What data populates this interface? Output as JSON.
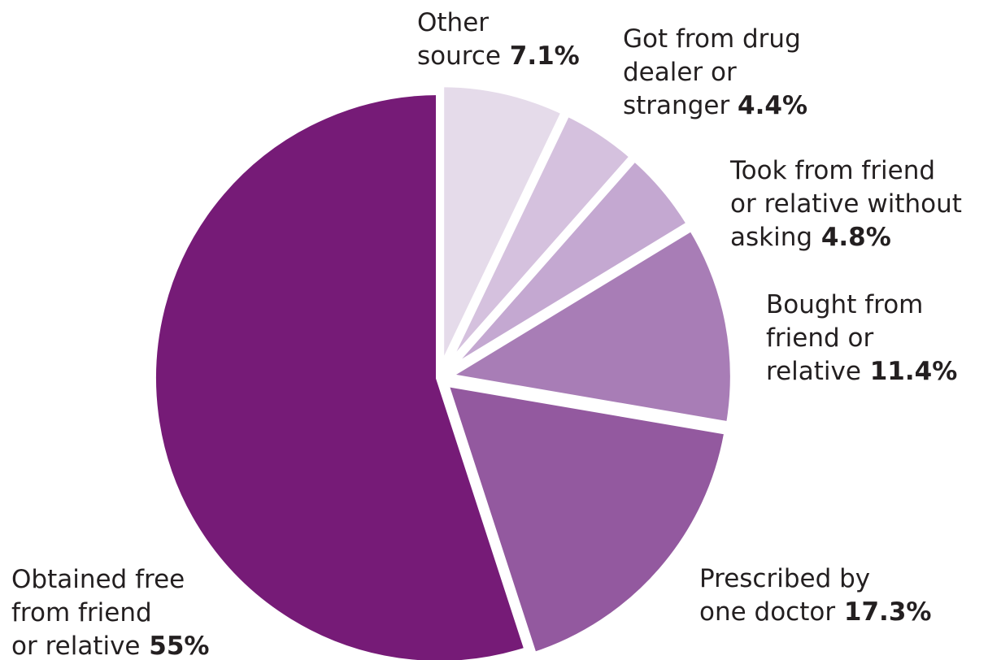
{
  "chart_data": {
    "type": "pie",
    "unit": "%",
    "start_angle_deg": 0,
    "direction": "clockwise",
    "colors": {
      "background": "#ffffff",
      "separator": "#ffffff",
      "text": "#231f20"
    },
    "slices": [
      {
        "name": "Other source",
        "label_lines": [
          "Other",
          "source"
        ],
        "value_label": "7.1%",
        "value": 7.1,
        "color": "#e5dbea"
      },
      {
        "name": "Got from drug dealer or stranger",
        "label_lines": [
          "Got from drug",
          "dealer or",
          "stranger "
        ],
        "value_label": "4.4%",
        "value": 4.4,
        "color": "#d5c1de"
      },
      {
        "name": "Took from friend or relative without asking",
        "label_lines": [
          "Took from friend",
          "or relative without",
          "asking"
        ],
        "value_label": "4.8%",
        "value": 4.8,
        "color": "#c4a8d1"
      },
      {
        "name": "Bought from friend or relative",
        "label_lines": [
          "Bought from",
          "friend or",
          "relative"
        ],
        "value_label": "11.4%",
        "value": 11.4,
        "color": "#a87db6"
      },
      {
        "name": "Prescribed by one doctor",
        "label_lines": [
          "Prescribed by",
          "one doctor"
        ],
        "value_label": "17.3%",
        "value": 17.3,
        "color": "#93599f"
      },
      {
        "name": "Obtained free from friend or relative",
        "label_lines": [
          "Obtained free",
          "from friend",
          "or relative"
        ],
        "value_label": "55%",
        "value": 55,
        "color": "#761b77"
      }
    ]
  }
}
